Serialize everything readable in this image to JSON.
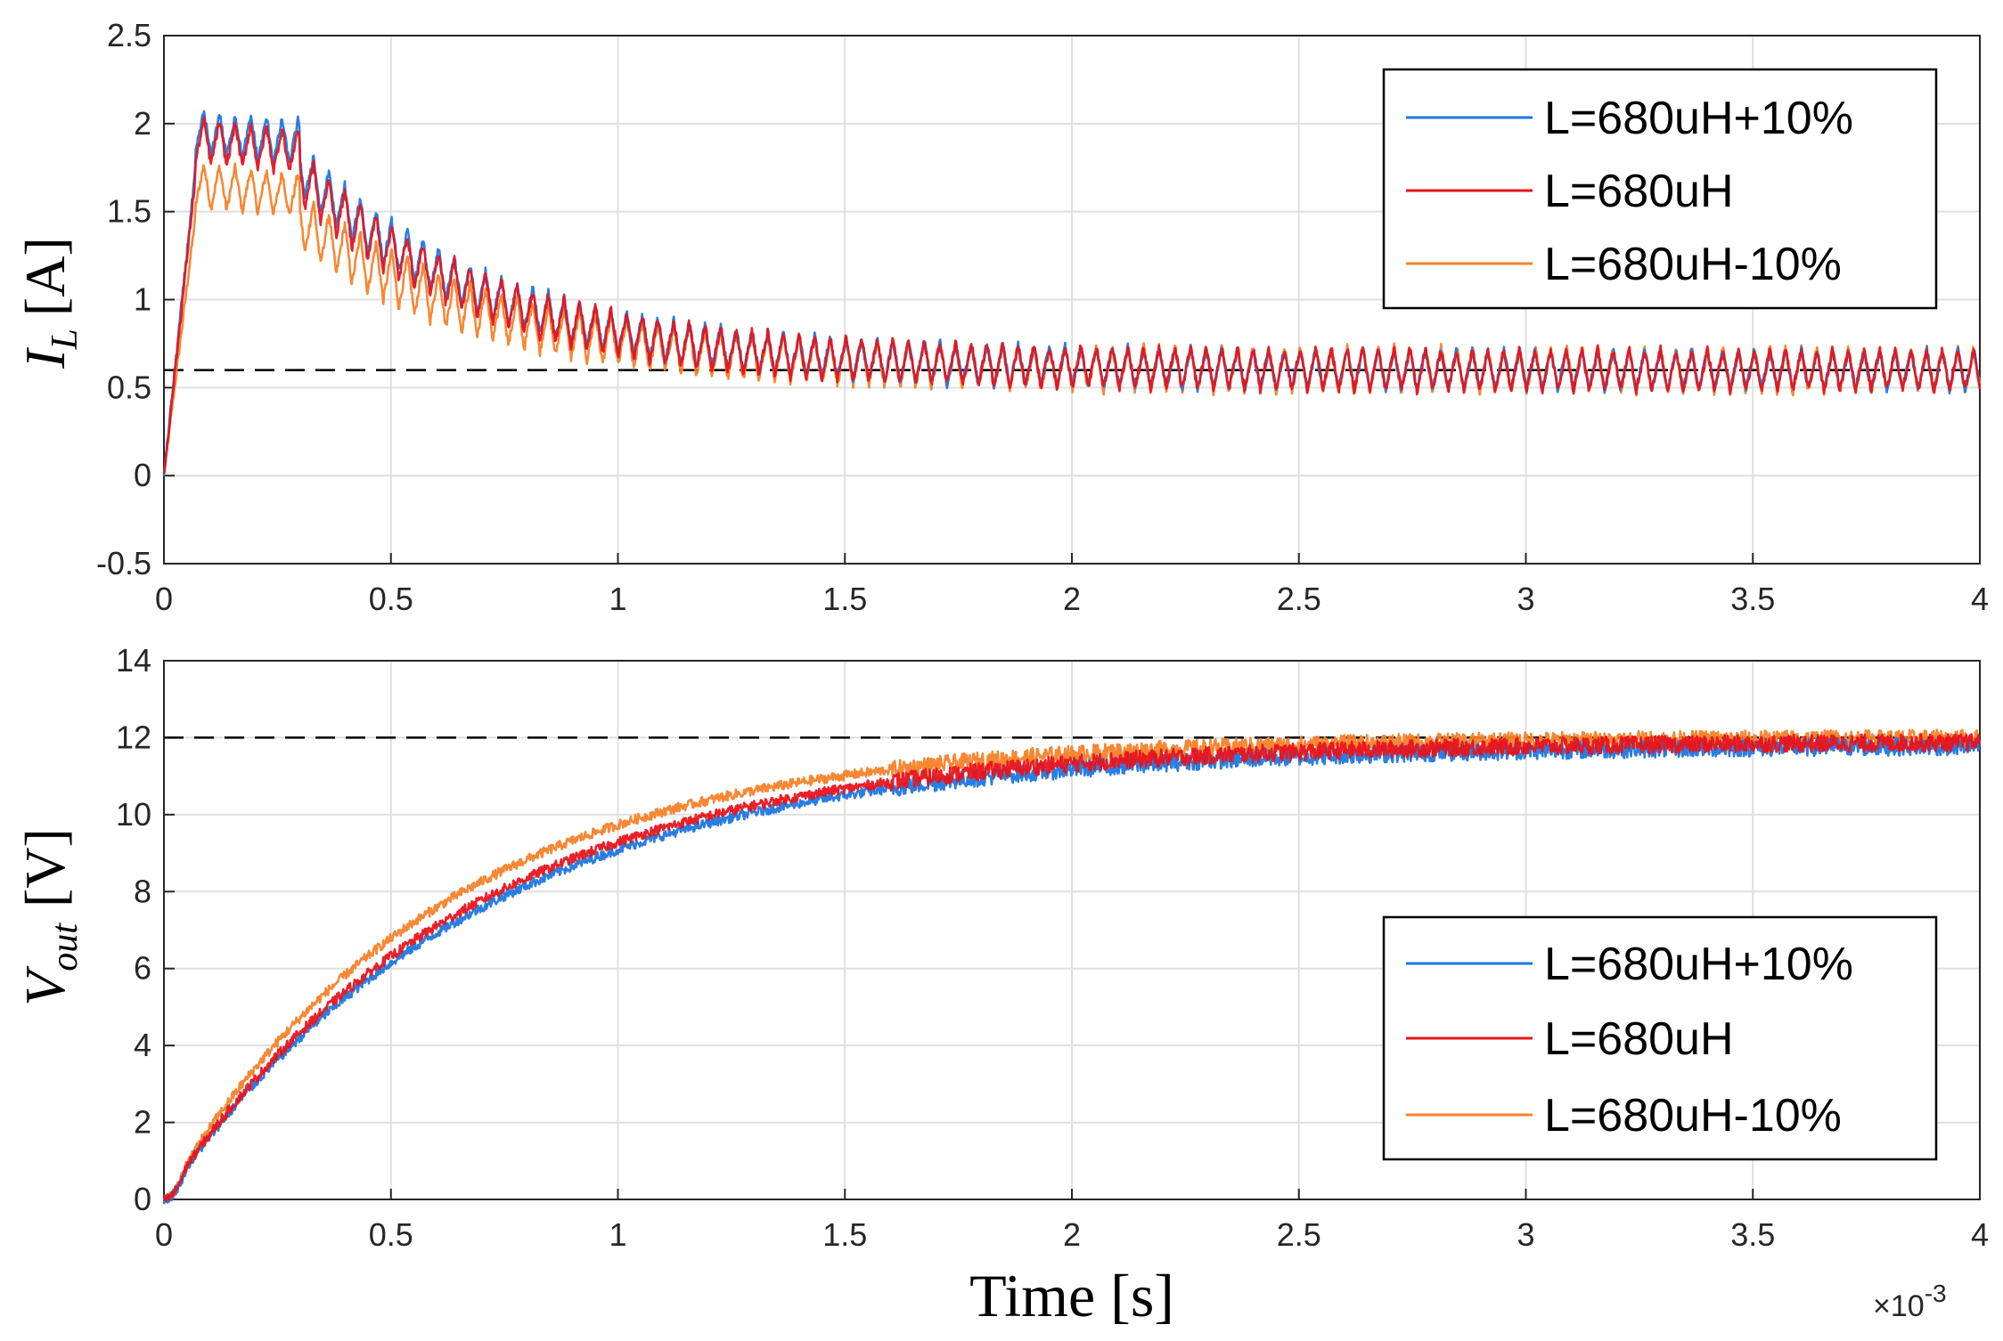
{
  "chart_data": [
    {
      "type": "line",
      "ylabel_main": "I",
      "ylabel_sub": "L",
      "ylabel_unit": "[A]",
      "xlabel": "",
      "xlim": [
        0,
        4
      ],
      "ylim": [
        -0.5,
        2.5
      ],
      "x_ticks": [
        "0",
        "0.5",
        "1",
        "1.5",
        "2",
        "2.5",
        "3",
        "3.5",
        "4"
      ],
      "y_ticks": [
        "-0.5",
        "0",
        "0.5",
        "1",
        "1.5",
        "2",
        "2.5"
      ],
      "grid": true,
      "reference_line": 0.6,
      "legend_position": "top-right",
      "legend": [
        "L=680uH+10%",
        "L=680uH",
        "L=680uH-10%"
      ],
      "series": [
        {
          "name": "L=680uH+10%",
          "color": "#1f77e0",
          "peak": 1.95,
          "settle": 0.6,
          "ripple": 0.25,
          "description": "inductor current, 0 to ~1.95 A peak near 0.15 ms, oscillating, settling around 0.6 A"
        },
        {
          "name": "L=680uH",
          "color": "#e8141c",
          "peak": 1.9,
          "settle": 0.6,
          "ripple": 0.26,
          "description": "inductor current, 0 to ~1.9 A peak near 0.15 ms, settling around 0.6 A"
        },
        {
          "name": "L=680uH-10%",
          "color": "#f5822a",
          "peak": 1.65,
          "settle": 0.6,
          "ripple": 0.28,
          "description": "inductor current, 0 to ~1.65 A peak, settling around 0.6 A"
        }
      ]
    },
    {
      "type": "line",
      "ylabel_main": "V",
      "ylabel_sub": "out",
      "ylabel_unit": "[V]",
      "xlabel": "Time  [s]",
      "x_exponent_base": "×10",
      "x_exponent_power": "-3",
      "xlim": [
        0,
        4
      ],
      "ylim": [
        0,
        14
      ],
      "x_ticks": [
        "0",
        "0.5",
        "1",
        "1.5",
        "2",
        "2.5",
        "3",
        "3.5",
        "4"
      ],
      "y_ticks": [
        "0",
        "2",
        "4",
        "6",
        "8",
        "10",
        "12",
        "14"
      ],
      "grid": true,
      "reference_line": 12,
      "legend_position": "bottom-right",
      "legend": [
        "L=680uH+10%",
        "L=680uH",
        "L=680uH-10%"
      ],
      "series": [
        {
          "name": "L=680uH+10%",
          "color": "#1f77e0",
          "final": 11.8,
          "tau": 0.68,
          "description": "output voltage rising from 0 to ~12 V, settling by ~2 ms"
        },
        {
          "name": "L=680uH",
          "color": "#e8141c",
          "final": 11.9,
          "tau": 0.66,
          "description": "output voltage rising from 0 to ~12 V, settling by ~2 ms"
        },
        {
          "name": "L=680uH-10%",
          "color": "#f5822a",
          "final": 12.0,
          "tau": 0.6,
          "description": "output voltage rising from 0 to ~12 V, slightly faster"
        }
      ]
    }
  ]
}
